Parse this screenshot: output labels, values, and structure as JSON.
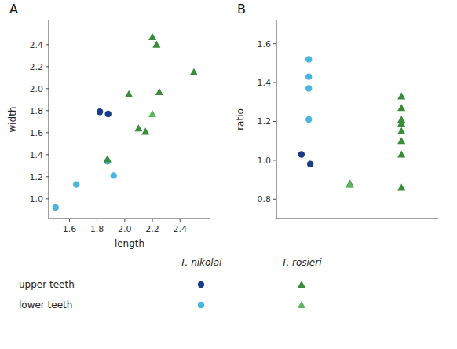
{
  "chart_data": [
    {
      "type": "scatter",
      "title": "A",
      "xlabel": "length",
      "ylabel": "width",
      "xlim": [
        1.45,
        2.62
      ],
      "ylim": [
        0.82,
        2.62
      ],
      "xticks": [
        1.6,
        1.8,
        {
          "value": 2.0,
          "label": "2.0"
        },
        2.2,
        2.4
      ],
      "yticks": [
        {
          "value": 1.0,
          "label": "1.0"
        },
        1.2,
        1.4,
        1.6,
        1.8,
        {
          "value": 2.0,
          "label": "2.0"
        },
        2.2,
        2.4
      ],
      "series": [
        {
          "color": "#1a3a8a",
          "marker": "circle",
          "x": [
            1.82,
            1.88
          ],
          "values": [
            1.79,
            1.77
          ]
        },
        {
          "color": "#4ab5e0",
          "marker": "circle",
          "x": [
            1.5,
            1.65,
            1.875,
            1.92
          ],
          "values": [
            0.92,
            1.13,
            1.34,
            1.21
          ]
        },
        {
          "color": "#3a8c3a",
          "marker": "triangle",
          "x": [
            1.875,
            2.03,
            2.1,
            2.15,
            2.2,
            2.23,
            2.25,
            2.5
          ],
          "values": [
            1.36,
            1.95,
            1.64,
            1.61,
            2.47,
            2.4,
            1.97,
            2.15
          ]
        },
        {
          "color": "#5ab85a",
          "marker": "triangle",
          "x": [
            2.2
          ],
          "values": [
            1.77
          ]
        }
      ]
    },
    {
      "type": "scatter",
      "title": "B",
      "ylabel": "ratio",
      "tick_labels": "y",
      "xlim": [
        1.65,
        2.75
      ],
      "ylim": [
        0.7,
        1.72
      ],
      "yticks": [
        0.8,
        {
          "value": 1.0,
          "label": "1.0"
        },
        1.2,
        1.4,
        1.6
      ],
      "series": [
        {
          "color": "#1a3a8a",
          "marker": "circle",
          "x": [
            1.82,
            1.88
          ],
          "values": [
            1.03,
            0.98
          ]
        },
        {
          "color": "#4ab5e0",
          "marker": "circle",
          "x": [
            1.87,
            1.87,
            1.87,
            1.87
          ],
          "values": [
            1.52,
            1.43,
            1.37,
            1.21
          ]
        },
        {
          "color": "#3a8c3a",
          "marker": "triangle",
          "x": [
            2.15,
            2.5,
            2.5,
            2.5,
            2.5,
            2.5,
            2.5,
            2.5,
            2.5
          ],
          "values": [
            0.88,
            1.33,
            1.27,
            1.21,
            1.19,
            1.15,
            1.1,
            1.03,
            0.86
          ]
        },
        {
          "color": "#5ab85a",
          "marker": "triangle",
          "x": [
            2.15
          ],
          "values": [
            0.875
          ]
        }
      ]
    }
  ],
  "legend": {
    "columns": [
      "T. nikolai",
      "T. rosieri"
    ],
    "rows": [
      "upper teeth",
      "lower teeth"
    ]
  }
}
